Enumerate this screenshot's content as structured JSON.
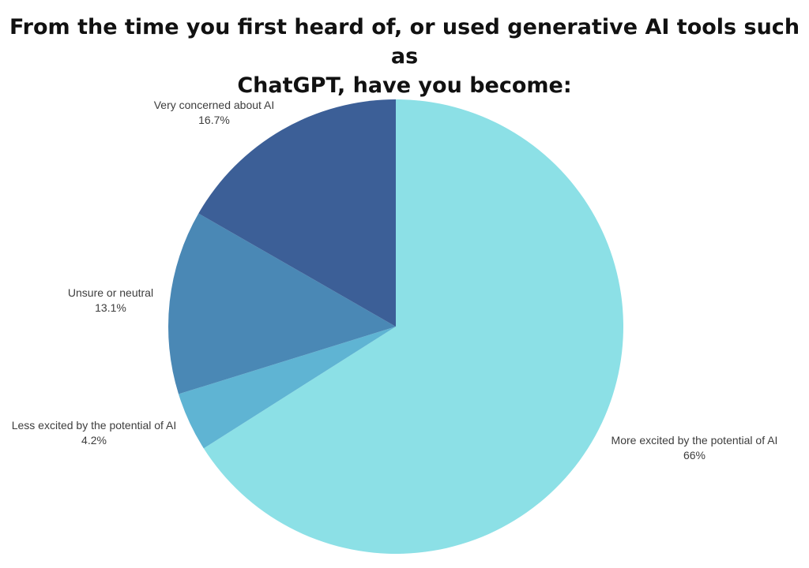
{
  "title": {
    "line1": "From the time you first heard of, or used generative AI tools such as",
    "line2": "ChatGPT, have you become:"
  },
  "chart_data": {
    "type": "pie",
    "title": "From the time you first heard of, or used generative AI tools such as ChatGPT, have you become:",
    "start_angle_deg": 0,
    "direction": "clockwise",
    "legend_position": "labels-around-pie",
    "slices": [
      {
        "label": "More excited by the potential of AI",
        "value": 66,
        "pct_label": "66%",
        "color": "#8ce0e6"
      },
      {
        "label": "Less excited by the potential of AI",
        "value": 4.2,
        "pct_label": "4.2%",
        "color": "#5fb4d3"
      },
      {
        "label": "Unsure or neutral",
        "value": 13.1,
        "pct_label": "13.1%",
        "color": "#4a88b5"
      },
      {
        "label": "Very concerned about AI",
        "value": 16.7,
        "pct_label": "16.7%",
        "color": "#3c5f97"
      }
    ]
  }
}
